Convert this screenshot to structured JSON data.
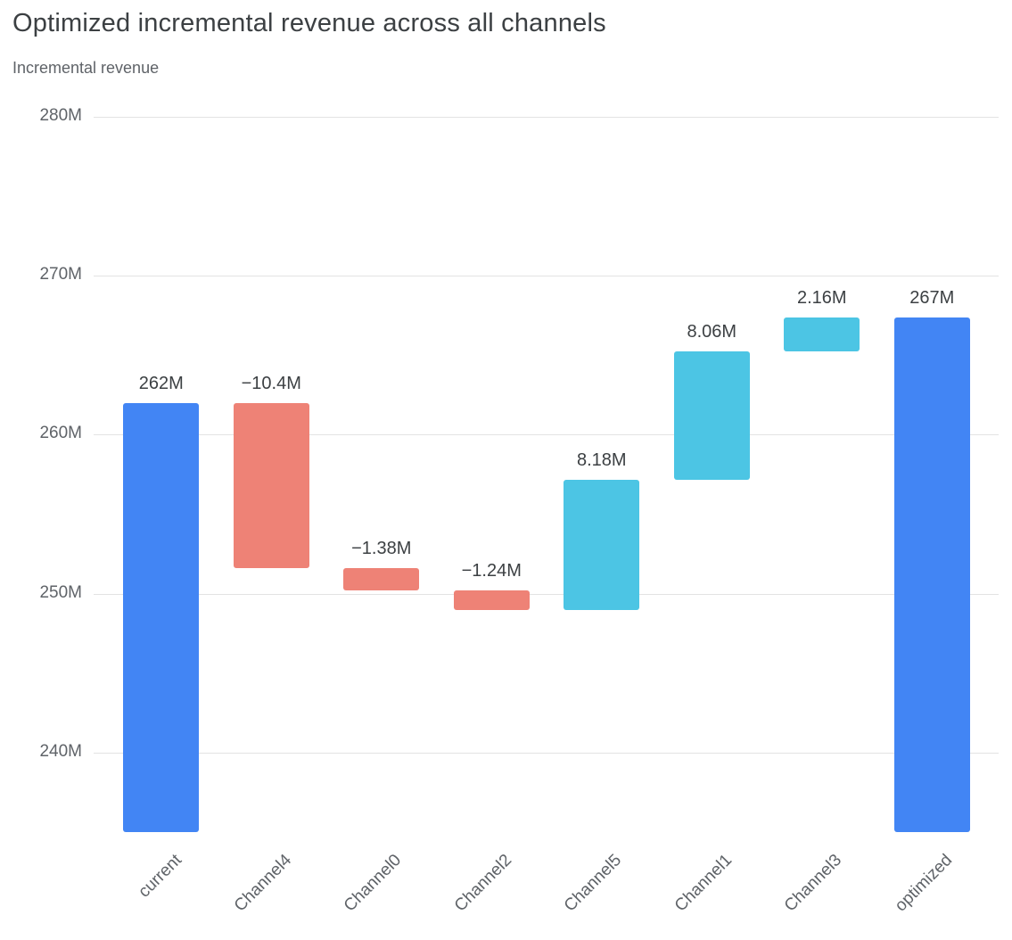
{
  "title": "Optimized incremental revenue across all channels",
  "subtitle": "Incremental revenue",
  "chart_data": {
    "type": "bar",
    "subtype": "waterfall",
    "title": "Optimized incremental revenue across all channels",
    "xlabel": "",
    "ylabel": "Incremental revenue",
    "categories": [
      "current",
      "Channel4",
      "Channel0",
      "Channel2",
      "Channel5",
      "Channel1",
      "Channel3",
      "optimized"
    ],
    "bars": [
      {
        "label": "current",
        "display": "262M",
        "value": 262,
        "start": 235,
        "end": 262,
        "kind": "total"
      },
      {
        "label": "Channel4",
        "display": "−10.4M",
        "value": -10.4,
        "start": 262,
        "end": 251.6,
        "kind": "decrease"
      },
      {
        "label": "Channel0",
        "display": "−1.38M",
        "value": -1.38,
        "start": 251.6,
        "end": 250.22,
        "kind": "decrease"
      },
      {
        "label": "Channel2",
        "display": "−1.24M",
        "value": -1.24,
        "start": 250.22,
        "end": 248.98,
        "kind": "decrease"
      },
      {
        "label": "Channel5",
        "display": "8.18M",
        "value": 8.18,
        "start": 248.98,
        "end": 257.16,
        "kind": "increase"
      },
      {
        "label": "Channel1",
        "display": "8.06M",
        "value": 8.06,
        "start": 257.16,
        "end": 265.22,
        "kind": "increase"
      },
      {
        "label": "Channel3",
        "display": "2.16M",
        "value": 2.16,
        "start": 265.22,
        "end": 267.38,
        "kind": "increase"
      },
      {
        "label": "optimized",
        "display": "267M",
        "value": 267,
        "start": 235,
        "end": 267.38,
        "kind": "total"
      }
    ],
    "yticks": [
      {
        "value": 240,
        "label": "240M"
      },
      {
        "value": 250,
        "label": "250M"
      },
      {
        "value": 260,
        "label": "260M"
      },
      {
        "value": 270,
        "label": "270M"
      },
      {
        "value": 280,
        "label": "280M"
      }
    ],
    "ylim": [
      235,
      280
    ],
    "grid": true,
    "legend": false,
    "colors": {
      "total": "#4285f4",
      "increase": "#4cc5e4",
      "decrease": "#ee8276",
      "gridline": "#e3e3e3",
      "axis_text": "#5f6368",
      "value_text": "#3c4043"
    }
  }
}
